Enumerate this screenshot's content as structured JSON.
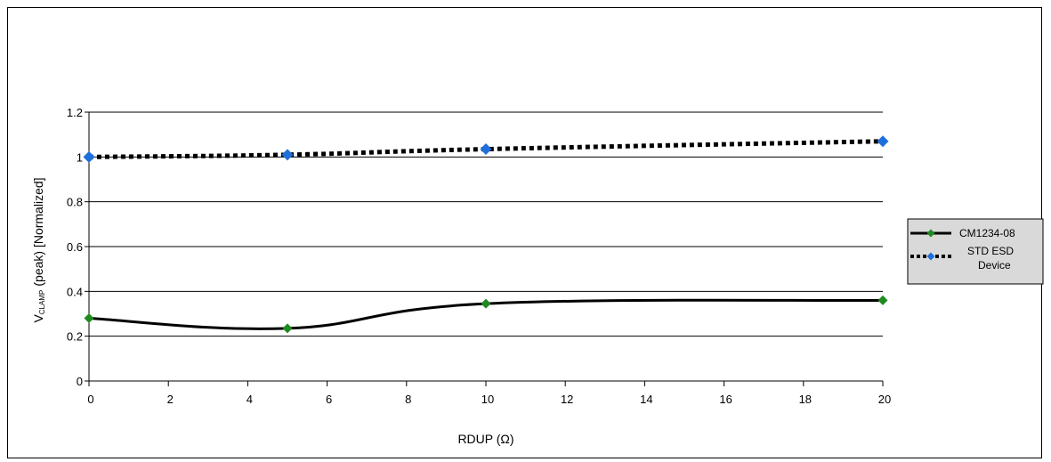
{
  "chart_data": {
    "type": "line",
    "title": "",
    "xlabel": "RDUP (Ω)",
    "ylabel": "V",
    "ylabel_sub": "CLAMP",
    "ylabel_rest": "(peak) [Normalized]",
    "xlim": [
      0,
      20
    ],
    "ylim": [
      0,
      1.2
    ],
    "xticks": [
      0,
      2,
      4,
      6,
      8,
      10,
      12,
      14,
      16,
      18,
      20
    ],
    "xtick_labels": [
      "0",
      "2",
      "4",
      "6",
      "8",
      "10",
      "12",
      "14",
      "16",
      "18",
      "20"
    ],
    "yticks": [
      0,
      0.2,
      0.4,
      0.6,
      0.8,
      1,
      1.2
    ],
    "ytick_labels": [
      "0",
      "0.2",
      "0.4",
      "0.6",
      "0.8",
      "1",
      "1.2"
    ],
    "grid": "horizontal",
    "legend_position": "right",
    "series": [
      {
        "name": "CM1234-08",
        "x": [
          0,
          5,
          10,
          20
        ],
        "y": [
          0.28,
          0.235,
          0.345,
          0.36
        ],
        "line_style": "solid",
        "line_color": "#000000",
        "marker_color": "#1f8a1f"
      },
      {
        "name": "STD ESD Device",
        "legend_lines": [
          "STD ESD",
          "Device"
        ],
        "x": [
          0,
          5,
          10,
          20
        ],
        "y": [
          1.0,
          1.01,
          1.035,
          1.07
        ],
        "line_style": "dotted",
        "line_color": "#000000",
        "marker_color": "#1e6fd9"
      }
    ]
  }
}
